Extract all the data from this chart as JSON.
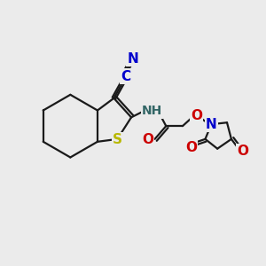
{
  "bg_color": "#ebebeb",
  "bond_color": "#1a1a1a",
  "atom_colors": {
    "S": "#b8b800",
    "N": "#0000cc",
    "NH": "#336666",
    "O": "#cc0000",
    "CN_C": "#0000cc",
    "CN_N": "#0000cc"
  },
  "lw": 1.6,
  "fontsize": 10.5
}
